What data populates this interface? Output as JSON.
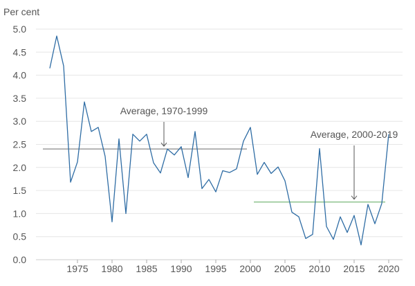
{
  "chart_data": {
    "type": "line",
    "ylabel": "Per cent",
    "ylim": [
      0,
      5
    ],
    "yticks": [
      "0.0",
      "0.5",
      "1.0",
      "1.5",
      "2.0",
      "2.5",
      "3.0",
      "3.5",
      "4.0",
      "4.5",
      "5.0"
    ],
    "xlim": [
      1969,
      2022
    ],
    "xticks": [
      "1975",
      "1980",
      "1985",
      "1990",
      "1995",
      "2000",
      "2005",
      "2010",
      "2015",
      "2020"
    ],
    "grid": true,
    "legend": "none",
    "series": [
      {
        "color": "#2e6ca4",
        "x": [
          1971,
          1972,
          1973,
          1974,
          1975,
          1976,
          1977,
          1978,
          1979,
          1980,
          1981,
          1982,
          1983,
          1984,
          1985,
          1986,
          1987,
          1988,
          1989,
          1990,
          1991,
          1992,
          1993,
          1994,
          1995,
          1996,
          1997,
          1998,
          1999,
          2000,
          2001,
          2002,
          2003,
          2004,
          2005,
          2006,
          2007,
          2008,
          2009,
          2010,
          2011,
          2012,
          2013,
          2014,
          2015,
          2016,
          2017,
          2018,
          2019,
          2020
        ],
        "y": [
          4.15,
          4.85,
          4.2,
          1.68,
          2.12,
          3.42,
          2.78,
          2.87,
          2.24,
          0.82,
          2.62,
          1.0,
          2.72,
          2.57,
          2.72,
          2.1,
          1.88,
          2.4,
          2.27,
          2.45,
          1.78,
          2.78,
          1.54,
          1.74,
          1.47,
          1.93,
          1.89,
          1.97,
          2.57,
          2.87,
          1.85,
          2.11,
          1.87,
          2.01,
          1.71,
          1.03,
          0.93,
          0.46,
          0.55,
          2.41,
          0.72,
          0.44,
          0.93,
          0.59,
          0.96,
          0.32,
          1.2,
          0.78,
          1.22,
          2.72
        ]
      }
    ],
    "averages": [
      {
        "label": "Average, 1970-1999",
        "value": 2.4,
        "x_start": 1970,
        "x_end": 1999.5,
        "arrow_x": 1987.5,
        "color": "#888888"
      },
      {
        "label": "Average, 2000-2019",
        "value": 1.25,
        "x_start": 2000.5,
        "x_end": 2019.5,
        "arrow_x": 2015,
        "color": "#7ab87a"
      }
    ]
  }
}
